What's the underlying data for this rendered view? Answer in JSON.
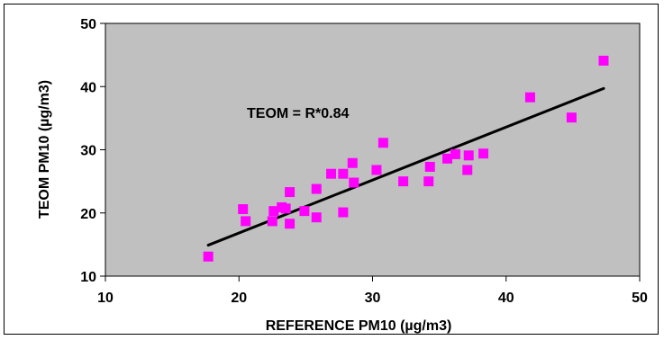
{
  "chart_data": {
    "type": "scatter",
    "title": "",
    "xlabel": "REFERENCE PM10 (µg/m3)",
    "ylabel": "TEOM PM10 (µg/m3)",
    "xlim": [
      10,
      50
    ],
    "ylim": [
      10,
      50
    ],
    "xticks": [
      "10",
      "20",
      "30",
      "40",
      "50"
    ],
    "yticks": [
      "10",
      "20",
      "30",
      "40",
      "50"
    ],
    "grid": false,
    "annotation": "TEOM = R*0.84",
    "colors": {
      "plot_area": "#c0c0c0",
      "marker": "#ff00ff",
      "trendline": "#000000"
    },
    "series": [
      {
        "marker": "square",
        "points": [
          [
            17.7,
            13.1
          ],
          [
            20.3,
            20.6
          ],
          [
            20.5,
            18.7
          ],
          [
            22.5,
            18.7
          ],
          [
            22.6,
            20.3
          ],
          [
            23.2,
            20.9
          ],
          [
            23.5,
            20.7
          ],
          [
            23.8,
            18.3
          ],
          [
            23.8,
            23.3
          ],
          [
            24.9,
            20.3
          ],
          [
            25.8,
            19.3
          ],
          [
            25.8,
            23.8
          ],
          [
            26.9,
            26.2
          ],
          [
            27.8,
            20.1
          ],
          [
            27.8,
            26.2
          ],
          [
            28.5,
            27.9
          ],
          [
            28.6,
            24.8
          ],
          [
            30.3,
            26.8
          ],
          [
            30.8,
            31.1
          ],
          [
            32.3,
            25.0
          ],
          [
            34.2,
            25.0
          ],
          [
            34.3,
            27.3
          ],
          [
            35.6,
            28.6
          ],
          [
            36.2,
            29.3
          ],
          [
            37.1,
            26.8
          ],
          [
            37.2,
            29.1
          ],
          [
            38.3,
            29.4
          ],
          [
            41.8,
            38.3
          ],
          [
            44.9,
            35.1
          ],
          [
            47.3,
            44.1
          ]
        ]
      }
    ],
    "trendline": {
      "x_start": 17.7,
      "x_end": 47.3,
      "y_start": 14.9,
      "y_end": 39.7
    }
  }
}
